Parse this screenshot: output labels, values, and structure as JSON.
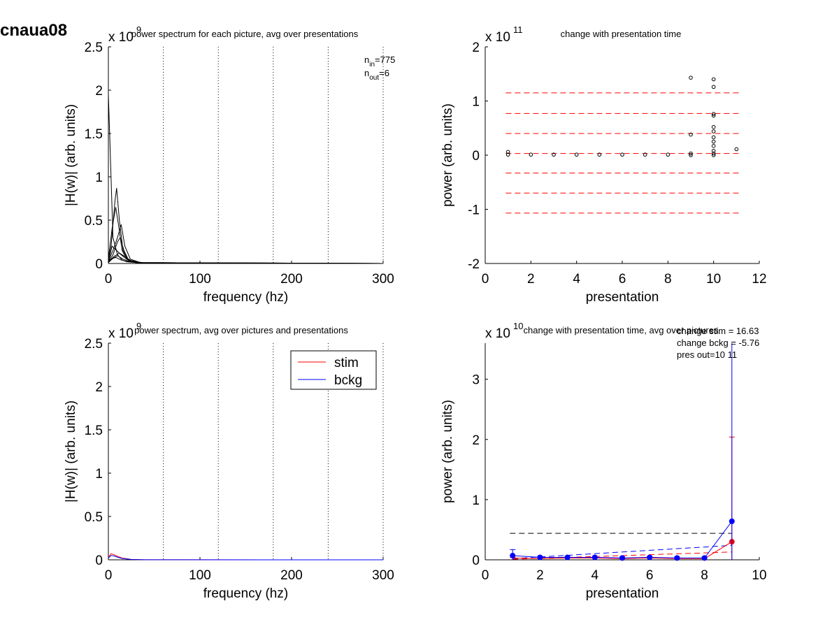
{
  "figure_title": "cnaua08",
  "colors": {
    "stim": "#ff0000",
    "bckg": "#0000ff",
    "axis": "#000000",
    "band": "#ff0000"
  },
  "chart_data": [
    {
      "id": "p1",
      "type": "line",
      "title": "power spectrum for each picture, avg over presentations",
      "xlabel": "frequency (hz)",
      "ylabel": "|H(w)| (arb. units)",
      "xlim": [
        0,
        300
      ],
      "ylim": [
        0,
        2.5
      ],
      "xticks": [
        0,
        100,
        200,
        300
      ],
      "yticks": [
        0,
        0.5,
        1,
        1.5,
        2,
        2.5
      ],
      "xtick_labels": [
        "0",
        "100",
        "200",
        "300"
      ],
      "ytick_labels": [
        "0",
        "0.5",
        "1",
        "1.5",
        "2",
        "2.5"
      ],
      "y_exponent_base": "x 10",
      "y_exponent": "9",
      "vlines": [
        60,
        120,
        180,
        240,
        300
      ],
      "annotations": [
        {
          "base": "n",
          "sub": "in",
          "text": "=775"
        },
        {
          "base": "n",
          "sub": "out",
          "text": "=6"
        }
      ],
      "series": [
        {
          "color": "#000000",
          "x": [
            0,
            2,
            5,
            10,
            15,
            20,
            30,
            50,
            300
          ],
          "y": [
            1.95,
            1.3,
            0.3,
            0.1,
            0.04,
            0.02,
            0.01,
            0.005,
            0.0
          ]
        },
        {
          "color": "#000000",
          "x": [
            0,
            3,
            7,
            9,
            12,
            16,
            22,
            35,
            300
          ],
          "y": [
            0.05,
            0.2,
            0.7,
            0.87,
            0.5,
            0.15,
            0.03,
            0.005,
            0.0
          ]
        },
        {
          "color": "#000000",
          "x": [
            0,
            4,
            8,
            11,
            15,
            20,
            30,
            300
          ],
          "y": [
            0.05,
            0.4,
            0.65,
            0.45,
            0.15,
            0.05,
            0.01,
            0.0
          ]
        },
        {
          "color": "#000000",
          "x": [
            0,
            5,
            10,
            14,
            18,
            24,
            35,
            300
          ],
          "y": [
            0.03,
            0.15,
            0.3,
            0.45,
            0.2,
            0.05,
            0.01,
            0.0
          ]
        },
        {
          "color": "#000000",
          "x": [
            0,
            5,
            10,
            13,
            17,
            22,
            35,
            300
          ],
          "y": [
            0.02,
            0.1,
            0.25,
            0.3,
            0.15,
            0.04,
            0.01,
            0.0
          ]
        },
        {
          "color": "#000000",
          "x": [
            0,
            4,
            9,
            14,
            20,
            30,
            300
          ],
          "y": [
            0.01,
            0.2,
            0.15,
            0.1,
            0.05,
            0.01,
            0.0
          ]
        },
        {
          "color": "#000000",
          "x": [
            0,
            6,
            12,
            18,
            25,
            40,
            300
          ],
          "y": [
            0.02,
            0.08,
            0.12,
            0.08,
            0.03,
            0.005,
            0.0
          ]
        },
        {
          "color": "#000000",
          "x": [
            0,
            5,
            10,
            16,
            24,
            40,
            300
          ],
          "y": [
            0.01,
            0.06,
            0.09,
            0.05,
            0.02,
            0.004,
            0.0
          ]
        },
        {
          "color": "#000000",
          "x": [
            0,
            3,
            8,
            14,
            22,
            40,
            300
          ],
          "y": [
            0.02,
            0.05,
            0.07,
            0.04,
            0.02,
            0.003,
            0.0
          ]
        }
      ]
    },
    {
      "id": "p2",
      "type": "scatter",
      "title": "change with presentation time",
      "xlabel": "presentation",
      "ylabel": "power (arb. units)",
      "xlim": [
        0,
        12
      ],
      "ylim": [
        -2,
        2
      ],
      "xticks": [
        0,
        2,
        4,
        6,
        8,
        10,
        12
      ],
      "yticks": [
        -2,
        -1,
        0,
        1,
        2
      ],
      "xtick_labels": [
        "0",
        "2",
        "4",
        "6",
        "8",
        "10",
        "12"
      ],
      "ytick_labels": [
        "-2",
        "-1",
        "0",
        "1",
        "2"
      ],
      "y_exponent_base": "x 10",
      "y_exponent": "11",
      "hlines": [
        1.15,
        0.77,
        0.4,
        0.03,
        -0.33,
        -0.7,
        -1.07
      ],
      "hline_range": [
        0.9,
        11.1
      ],
      "points": [
        {
          "x": 1,
          "y": 0.06
        },
        {
          "x": 1,
          "y": 0.01
        },
        {
          "x": 2,
          "y": 0.01
        },
        {
          "x": 3,
          "y": 0.01
        },
        {
          "x": 4,
          "y": 0.01
        },
        {
          "x": 5,
          "y": 0.01
        },
        {
          "x": 6,
          "y": 0.01
        },
        {
          "x": 7,
          "y": 0.01
        },
        {
          "x": 8,
          "y": 0.01
        },
        {
          "x": 9,
          "y": 1.43
        },
        {
          "x": 9,
          "y": 0.38
        },
        {
          "x": 9,
          "y": 0.03
        },
        {
          "x": 9,
          "y": 0.0
        },
        {
          "x": 10,
          "y": 1.4
        },
        {
          "x": 10,
          "y": 1.26
        },
        {
          "x": 10,
          "y": 0.76
        },
        {
          "x": 10,
          "y": 0.73
        },
        {
          "x": 10,
          "y": 0.52
        },
        {
          "x": 10,
          "y": 0.44
        },
        {
          "x": 10,
          "y": 0.33
        },
        {
          "x": 10,
          "y": 0.25
        },
        {
          "x": 10,
          "y": 0.17
        },
        {
          "x": 10,
          "y": 0.08
        },
        {
          "x": 10,
          "y": 0.03
        },
        {
          "x": 10,
          "y": 0.0
        },
        {
          "x": 11,
          "y": 0.11
        }
      ]
    },
    {
      "id": "p3",
      "type": "line",
      "title": "power spectrum, avg over pictures and presentations",
      "xlabel": "frequency (hz)",
      "ylabel": "|H(w)| (arb. units)",
      "xlim": [
        0,
        300
      ],
      "ylim": [
        0,
        2.5
      ],
      "xticks": [
        0,
        100,
        200,
        300
      ],
      "yticks": [
        0,
        0.5,
        1,
        1.5,
        2,
        2.5
      ],
      "xtick_labels": [
        "0",
        "100",
        "200",
        "300"
      ],
      "ytick_labels": [
        "0",
        "0.5",
        "1",
        "1.5",
        "2",
        "2.5"
      ],
      "y_exponent_base": "x 10",
      "y_exponent": "9",
      "vlines": [
        60,
        120,
        180,
        240,
        300
      ],
      "legend": {
        "placement": "top-right",
        "entries": [
          {
            "name": "stim",
            "color": "#ff0000"
          },
          {
            "name": "bckg",
            "color": "#0000ff"
          }
        ]
      },
      "series": [
        {
          "name": "stim",
          "color": "#ff0000",
          "x": [
            0,
            3,
            6,
            10,
            15,
            25,
            40,
            300
          ],
          "y": [
            0.03,
            0.07,
            0.06,
            0.04,
            0.02,
            0.005,
            0.001,
            0.0
          ]
        },
        {
          "name": "bckg",
          "color": "#0000ff",
          "x": [
            0,
            3,
            6,
            10,
            15,
            25,
            40,
            300
          ],
          "y": [
            0.02,
            0.05,
            0.045,
            0.03,
            0.015,
            0.004,
            0.001,
            0.0
          ]
        }
      ]
    },
    {
      "id": "p4",
      "type": "line",
      "title": "change with presentation time, avg over pictures",
      "xlabel": "presentation",
      "ylabel": "power (arb. units)",
      "xlim": [
        0,
        10
      ],
      "ylim": [
        0,
        3.6
      ],
      "xticks": [
        0,
        2,
        4,
        6,
        8,
        10
      ],
      "yticks": [
        0,
        1,
        2,
        3
      ],
      "xtick_labels": [
        "0",
        "2",
        "4",
        "6",
        "8",
        "10"
      ],
      "ytick_labels": [
        "0",
        "1",
        "2",
        "3"
      ],
      "y_exponent_base": "x 10",
      "y_exponent": "10",
      "annotations": [
        {
          "text": "change stim = 16.63"
        },
        {
          "text": "change bckg = -5.76"
        },
        {
          "text": "pres out=10 11"
        }
      ],
      "dashed_lines": [
        {
          "color": "#000000",
          "x": [
            0.9,
            9
          ],
          "y": [
            0.44,
            0.44
          ]
        },
        {
          "color": "#0000ff",
          "x": [
            1,
            9
          ],
          "y": [
            0.02,
            0.24
          ]
        },
        {
          "color": "#ff0000",
          "x": [
            1,
            9
          ],
          "y": [
            0.01,
            0.13
          ]
        }
      ],
      "series": [
        {
          "name": "stim",
          "color": "#ff0000",
          "x": [
            1,
            2,
            3,
            4,
            5,
            6,
            7,
            8,
            9
          ],
          "y": [
            0.03,
            0.02,
            0.03,
            0.03,
            0.02,
            0.03,
            0.02,
            0.02,
            0.3
          ],
          "err": [
            0.01,
            0.01,
            0.01,
            0.01,
            0.01,
            0.01,
            0.01,
            0.01,
            1.74
          ],
          "marker_points": [
            9
          ]
        },
        {
          "name": "bckg",
          "color": "#0000ff",
          "x": [
            1,
            2,
            3,
            4,
            5,
            6,
            7,
            8,
            9
          ],
          "y": [
            0.07,
            0.04,
            0.04,
            0.04,
            0.03,
            0.04,
            0.03,
            0.03,
            0.64
          ],
          "err": [
            0.1,
            0.02,
            0.02,
            0.02,
            0.02,
            0.02,
            0.02,
            0.02,
            3.0
          ],
          "marker_points": [
            1,
            2,
            3,
            4,
            5,
            6,
            7,
            8,
            9
          ]
        }
      ]
    }
  ]
}
